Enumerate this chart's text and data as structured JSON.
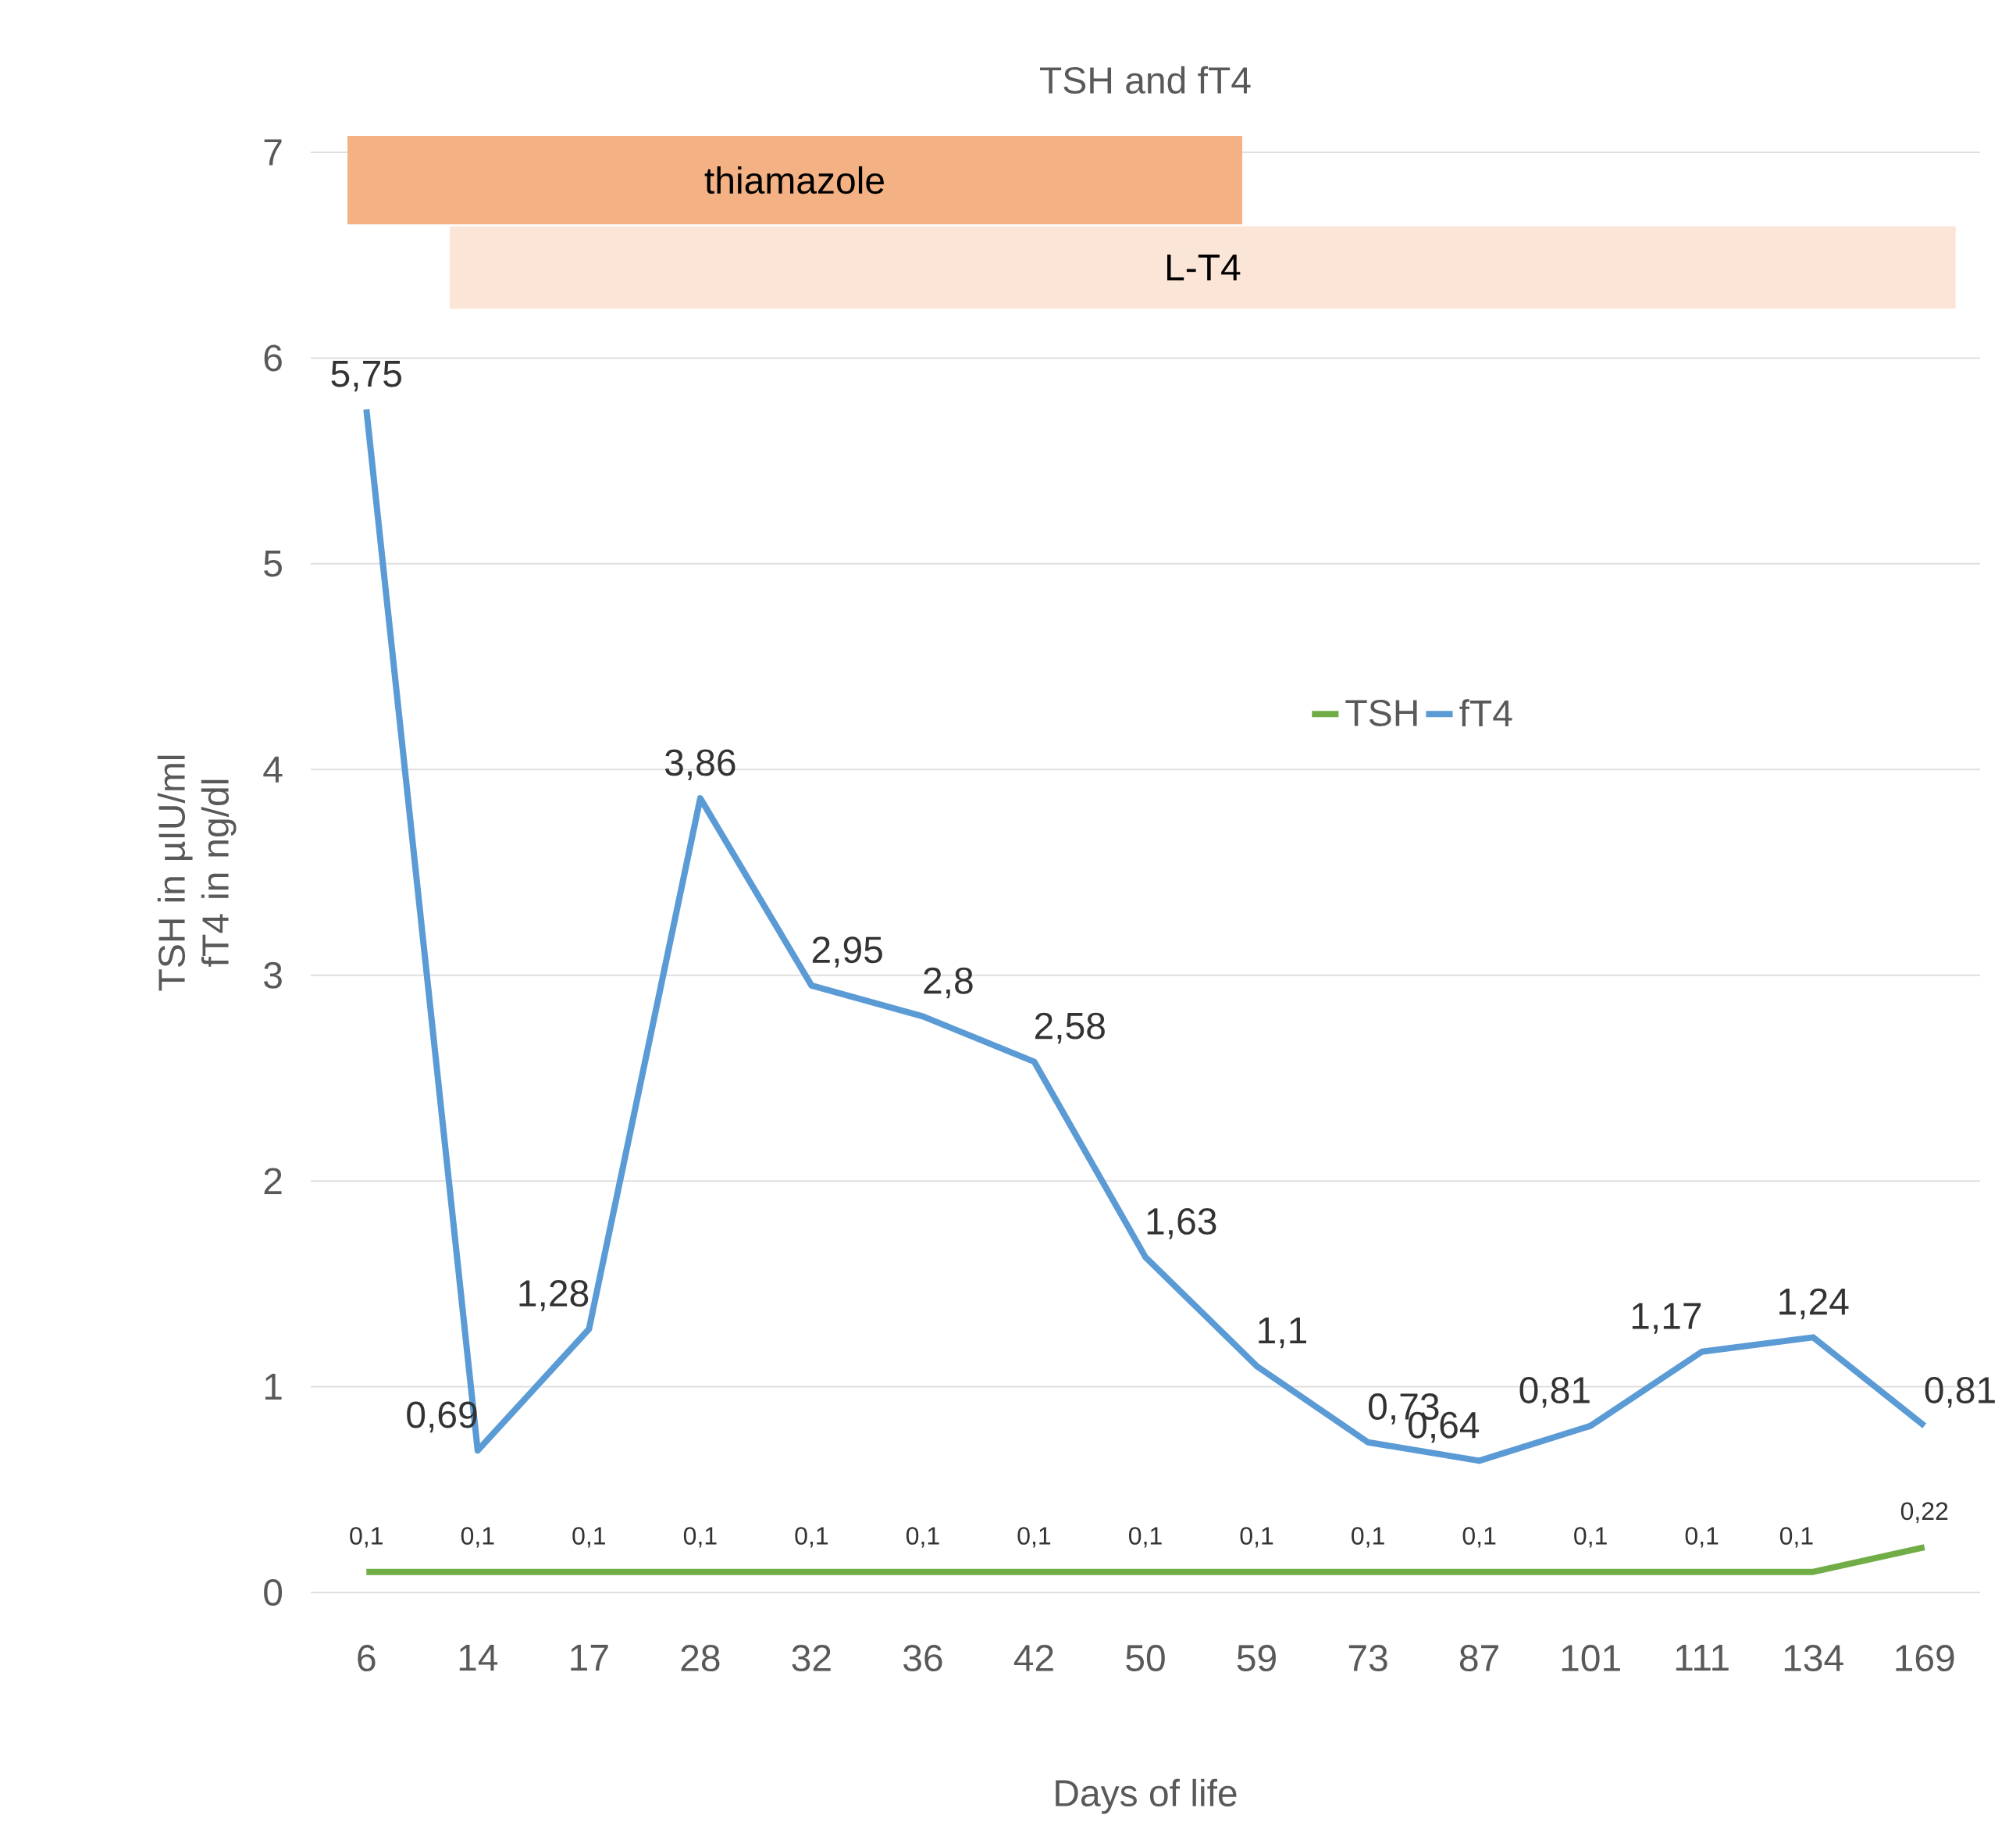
{
  "chart_data": {
    "type": "line",
    "title": "TSH and fT4",
    "xlabel": "Days of life",
    "ylabel": "TSH in µIU/ml fT4 in ng/dl",
    "categories": [
      "6",
      "14",
      "17",
      "28",
      "32",
      "36",
      "42",
      "50",
      "59",
      "73",
      "87",
      "101",
      "111",
      "134",
      "169"
    ],
    "series": [
      {
        "name": "TSH",
        "color": "#70ad47",
        "values": [
          0.1,
          0.1,
          0.1,
          0.1,
          0.1,
          0.1,
          0.1,
          0.1,
          0.1,
          0.1,
          0.1,
          0.1,
          0.1,
          0.1,
          0.22
        ],
        "value_labels": [
          "0,1",
          "0,1",
          "0,1",
          "0,1",
          "0,1",
          "0,1",
          "0,1",
          "0,1",
          "0,1",
          "0,1",
          "0,1",
          "0,1",
          "0,1",
          "0,1",
          "0,22"
        ]
      },
      {
        "name": "fT4",
        "color": "#5b9bd5",
        "values": [
          5.75,
          0.69,
          1.28,
          3.86,
          2.95,
          2.8,
          2.58,
          1.63,
          1.1,
          0.73,
          0.64,
          0.81,
          1.17,
          1.24,
          0.81
        ],
        "value_labels": [
          "5,75",
          "0,69",
          "1,28",
          "3,86",
          "2,95",
          "2,8",
          "2,58",
          "1,63",
          "1,1",
          "0,73",
          "0,64",
          "0,81",
          "1,17",
          "1,24",
          "0,81"
        ]
      }
    ],
    "bands": [
      {
        "axis": "x",
        "from": "6",
        "to": "59",
        "label": "thiamazole",
        "color": "#f4b183"
      },
      {
        "axis": "x",
        "from": "14",
        "to": "169",
        "label": "L-T4",
        "color": "#fbe5d6"
      }
    ],
    "ylim": [
      0,
      7
    ],
    "yticks": [
      0,
      1,
      2,
      3,
      4,
      5,
      6,
      7
    ],
    "grid": "y",
    "legend": "right",
    "marker": "none",
    "line_style": "solid"
  }
}
